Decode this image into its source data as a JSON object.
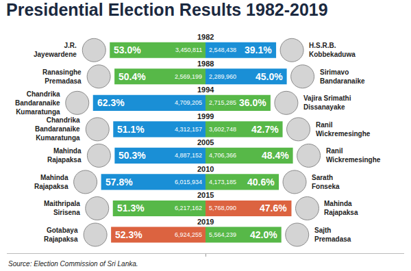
{
  "chart_data": {
    "type": "bar",
    "orientation": "horizontal",
    "title": "Presidential Election Results 1982-2019",
    "annotations": [
      "Source: Election Commission of Sri Lanka."
    ],
    "categories": [
      "1982",
      "1988",
      "1994",
      "1999",
      "2005",
      "2010",
      "2015",
      "2019"
    ],
    "xlim": [
      0,
      110
    ],
    "xticks": [
      0
    ],
    "tick_labels": false,
    "grid": false,
    "data_labels": true,
    "series": [
      {
        "candidates": [
          [
            "J.R.",
            "Jayewardene"
          ],
          [
            "Ranasinghe",
            "Premadasa"
          ],
          [
            "Chandrika",
            "Bandaranaike",
            "Kumaratunga"
          ],
          [
            "Chandrika",
            "Bandaranaike",
            "Kumaratunga"
          ],
          [
            "Mahinda",
            "Rajapaksa"
          ],
          [
            "Mahinda",
            "Rajapaksa"
          ],
          [
            "Maithripala",
            "Sirisena"
          ],
          [
            "Gotabaya",
            "Rajapaksa"
          ]
        ],
        "values": [
          53.0,
          50.4,
          62.3,
          51.1,
          50.3,
          57.8,
          51.3,
          52.3
        ],
        "value_labels": [
          "53.0%",
          "50.4%",
          "62.3%",
          "51.1%",
          "50.3%",
          "57.8%",
          "51.3%",
          "52.3%"
        ],
        "votes": [
          3450811,
          2569199,
          4709205,
          4312157,
          4887152,
          6015934,
          6217162,
          6924255
        ],
        "vote_labels": [
          "3,450,811",
          "2,569,199",
          "4,709,205",
          "4,312,157",
          "4,887,152",
          "6,015,934",
          "6,217,162",
          "6,924,255"
        ],
        "colors": [
          "#57b848",
          "#57b848",
          "#1a8fd6",
          "#1a8fd6",
          "#1a8fd6",
          "#1a8fd6",
          "#57b848",
          "#dc6340"
        ]
      },
      {
        "candidates": [
          [
            "H.S.R.B.",
            "Kobbekaduwa"
          ],
          [
            "Sirimavo",
            "Bandaranaike"
          ],
          [
            "Vajira Srimathi",
            "Dissanayake"
          ],
          [
            "Ranil",
            "Wickremesinghe"
          ],
          [
            "Ranil",
            "Wickremesinghe"
          ],
          [
            "Sarath",
            "Fonseka"
          ],
          [
            "Mahinda",
            "Rajapaksa"
          ],
          [
            "Sajth",
            "Premadasa"
          ]
        ],
        "values": [
          39.1,
          45.0,
          36.0,
          42.7,
          48.4,
          40.6,
          47.6,
          42.0
        ],
        "value_labels": [
          "39.1%",
          "45.0%",
          "36.0%",
          "42.7%",
          "48.4%",
          "40.6%",
          "47.6%",
          "42.0%"
        ],
        "votes": [
          2548438,
          2289960,
          2715285,
          3602748,
          4706366,
          4173185,
          5768090,
          5564239
        ],
        "vote_labels": [
          "2,548,438",
          "2,289,960",
          "2,715,285",
          "3,602,748",
          "4,706,366",
          "4,173,185",
          "5,768,090",
          "5,564,239"
        ],
        "colors": [
          "#1a8fd6",
          "#1a8fd6",
          "#57b848",
          "#57b848",
          "#57b848",
          "#57b848",
          "#dc6340",
          "#57b848"
        ]
      }
    ]
  }
}
